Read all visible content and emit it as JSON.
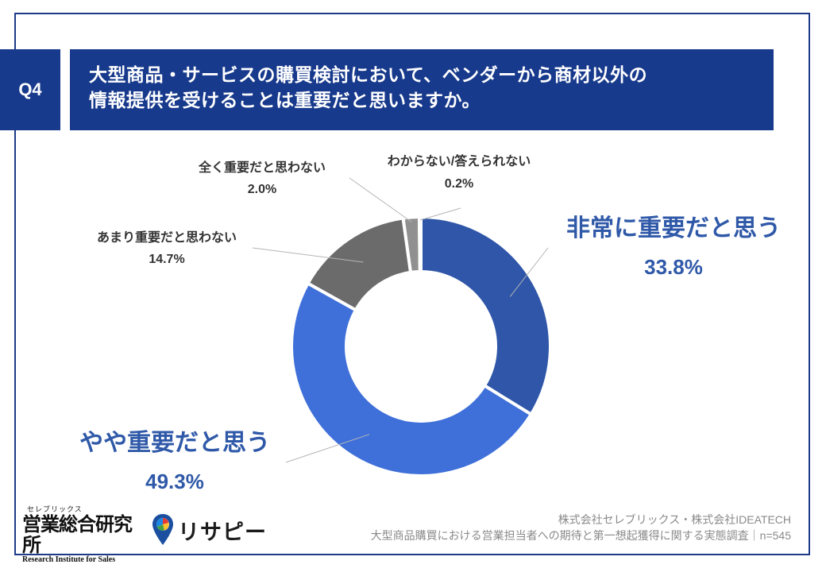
{
  "question": {
    "number": "Q4",
    "line1": "大型商品・サービスの購買検討において、ベンダーから商材以外の",
    "line2": "情報提供を受けることは重要だと思いますか。"
  },
  "chart_data": {
    "type": "pie",
    "style": "donut",
    "title": "大型商品・サービスの購買検討において、ベンダーから商材以外の情報提供を受けることは重要だと思いますか。",
    "slices": [
      {
        "label": "非常に重要だと思う",
        "value": 33.8,
        "value_label": "33.8%",
        "color": "#2f56a8"
      },
      {
        "label": "やや重要だと思う",
        "value": 49.3,
        "value_label": "49.3%",
        "color": "#3f70d9"
      },
      {
        "label": "あまり重要だと思わない",
        "value": 14.7,
        "value_label": "14.7%",
        "color": "#6b6b6b"
      },
      {
        "label": "全く重要だと思わない",
        "value": 2.0,
        "value_label": "2.0%",
        "color": "#909090"
      },
      {
        "label": "わからない/答えられない",
        "value": 0.2,
        "value_label": "0.2%",
        "color": "#c4c4c4"
      }
    ],
    "n": 545
  },
  "colors": {
    "header_bg": "#183a8c",
    "big_label": "#2f59a8",
    "frame": "#1f3a8a"
  },
  "footer": {
    "company": "株式会社セレブリックス・株式会社IDEATECH",
    "survey": "大型商品購買における営業担当者への期待と第一想起獲得に関する実態調査｜n=545"
  },
  "logos": {
    "institute_kana": "セレブリックス",
    "institute_name": "営業総合研究所",
    "institute_en": "Research Institute for Sales",
    "brand": "リサピー"
  }
}
